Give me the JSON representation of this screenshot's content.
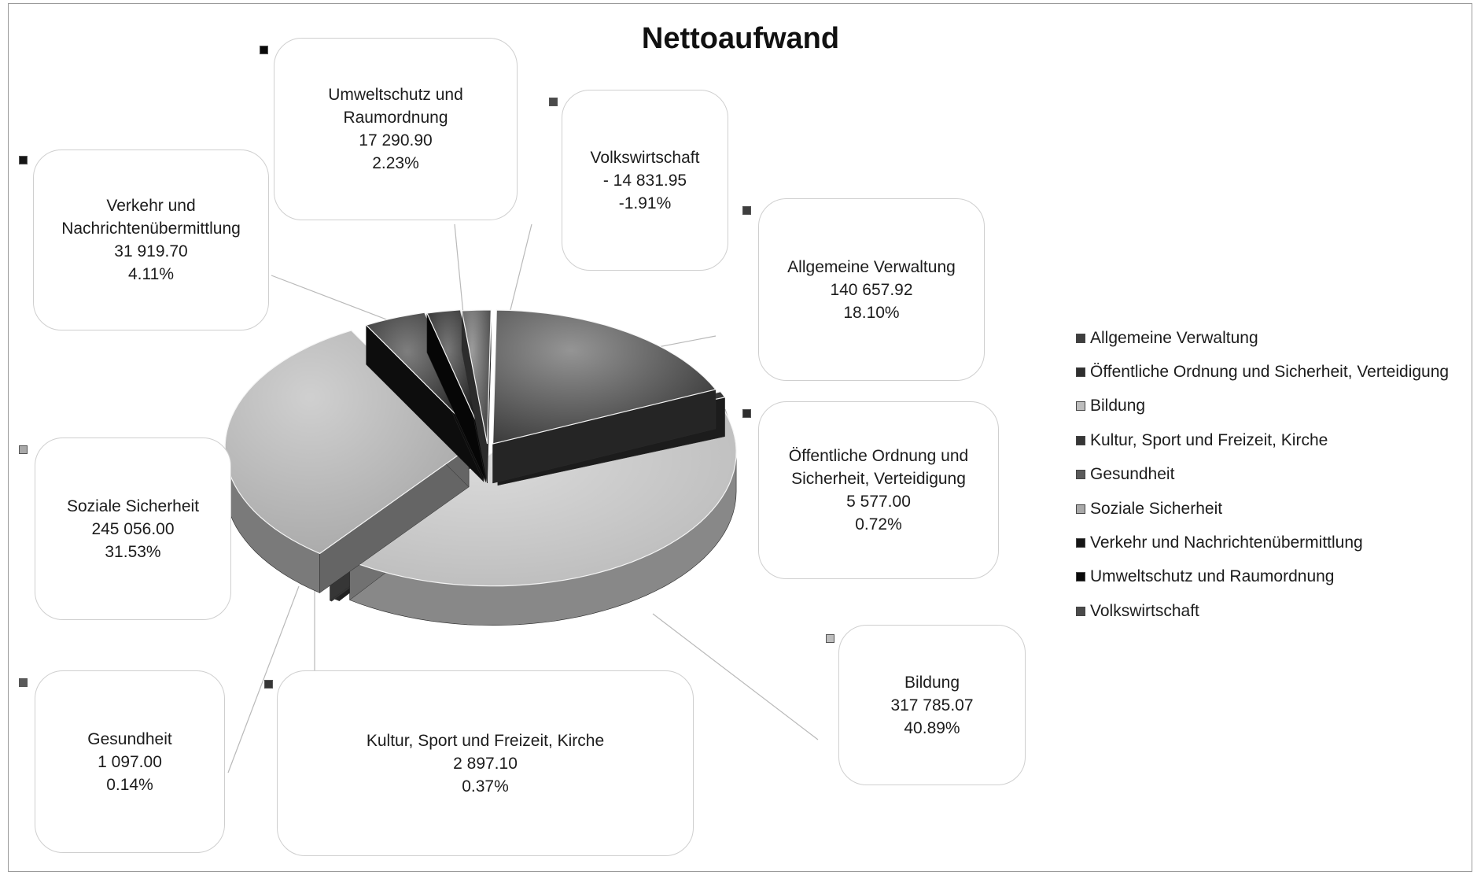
{
  "chart_data": {
    "type": "pie",
    "title": "Nettoaufwand",
    "categories": [
      "Allgemeine Verwaltung",
      "Öffentliche Ordnung und Sicherheit, Verteidigung",
      "Bildung",
      "Kultur, Sport und Freizeit, Kirche",
      "Gesundheit",
      "Soziale Sicherheit",
      "Verkehr und Nachrichtenübermittlung",
      "Umweltschutz und Raumordnung",
      "Volkswirtschaft"
    ],
    "values": [
      140657.92,
      5577.0,
      317785.07,
      2897.1,
      1097.0,
      245056.0,
      31919.7,
      17290.9,
      -14831.95
    ],
    "percentages": [
      18.1,
      0.72,
      40.89,
      0.37,
      0.14,
      31.53,
      4.11,
      2.23,
      -1.91
    ],
    "legend_position": "right",
    "slices": [
      {
        "name": "Allgemeine Verwaltung",
        "label": "Allgemeine Verwaltung",
        "value_text": "140 657.92",
        "pct_text": "18.10%",
        "color": "#3e3e3e"
      },
      {
        "name": "Öffentliche Ordnung und Sicherheit, Verteidigung",
        "label": "Öffentliche Ordnung und\nSicherheit, Verteidigung",
        "value_text": "5 577.00",
        "pct_text": "0.72%",
        "color": "#2e2e2e"
      },
      {
        "name": "Bildung",
        "label": "Bildung",
        "value_text": "317 785.07",
        "pct_text": "40.89%",
        "color": "#bdbdbd"
      },
      {
        "name": "Kultur, Sport und Freizeit, Kirche",
        "label": "Kultur, Sport und Freizeit, Kirche",
        "value_text": "2 897.10",
        "pct_text": "0.37%",
        "color": "#363636"
      },
      {
        "name": "Gesundheit",
        "label": "Gesundheit",
        "value_text": "1 097.00",
        "pct_text": "0.14%",
        "color": "#5a5a5a"
      },
      {
        "name": "Soziale Sicherheit",
        "label": "Soziale Sicherheit",
        "value_text": "245 056.00",
        "pct_text": "31.53%",
        "color": "#a9a9a9"
      },
      {
        "name": "Verkehr und Nachrichtenübermittlung",
        "label": "Verkehr und\nNachrichtenübermittlung",
        "value_text": "31 919.70",
        "pct_text": "4.11%",
        "color": "#151515"
      },
      {
        "name": "Umweltschutz und Raumordnung",
        "label": "Umweltschutz und\nRaumordnung",
        "value_text": "17 290.90",
        "pct_text": "2.23%",
        "color": "#0a0a0a"
      },
      {
        "name": "Volkswirtschaft",
        "label": "Volkswirtschaft",
        "value_text": "-  14 831.95",
        "pct_text": "-1.91%",
        "color": "#4a4a4a"
      }
    ]
  }
}
